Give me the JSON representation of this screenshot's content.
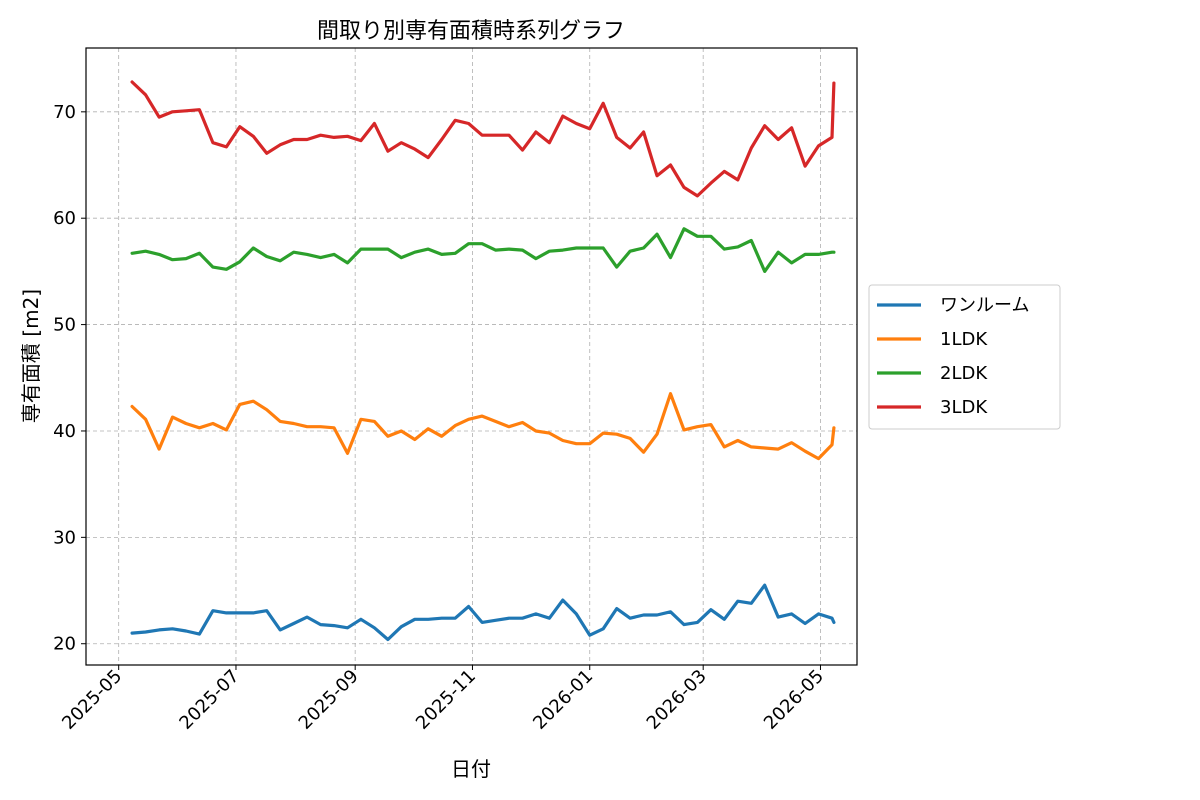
{
  "chart_data": {
    "type": "line",
    "title": "間取り別専有面積時系列グラフ",
    "xlabel": "日付",
    "ylabel": "専有面積 [m2]",
    "xlim": [
      "2025-04-14",
      "2026-05-20"
    ],
    "ylim": [
      18,
      76
    ],
    "grid": true,
    "legend_position": "outside-right",
    "x_ticks": [
      "2025-05-01",
      "2025-07-01",
      "2025-09-01",
      "2025-11-01",
      "2026-01-01",
      "2026-03-01",
      "2026-05-01"
    ],
    "x_tick_labels": [
      "2025-05",
      "2025-07",
      "2025-09",
      "2025-11",
      "2026-01",
      "2026-03",
      "2026-05"
    ],
    "y_ticks": [
      20,
      30,
      40,
      50,
      60,
      70
    ],
    "x": [
      "2025-05-08",
      "2025-05-15",
      "2025-05-22",
      "2025-05-29",
      "2025-06-05",
      "2025-06-12",
      "2025-06-19",
      "2025-06-26",
      "2025-07-03",
      "2025-07-10",
      "2025-07-17",
      "2025-07-24",
      "2025-07-31",
      "2025-08-07",
      "2025-08-14",
      "2025-08-21",
      "2025-08-28",
      "2025-09-04",
      "2025-09-11",
      "2025-09-18",
      "2025-09-25",
      "2025-10-02",
      "2025-10-09",
      "2025-10-16",
      "2025-10-23",
      "2025-10-30",
      "2025-11-06",
      "2025-11-13",
      "2025-11-20",
      "2025-11-27",
      "2025-12-04",
      "2025-12-11",
      "2025-12-18",
      "2025-12-25",
      "2026-01-01",
      "2026-01-08",
      "2026-01-15",
      "2026-01-22",
      "2026-01-29",
      "2026-02-05",
      "2026-02-12",
      "2026-02-19",
      "2026-02-26",
      "2026-03-05",
      "2026-03-12",
      "2026-03-19",
      "2026-03-26",
      "2026-04-02",
      "2026-04-09",
      "2026-04-16",
      "2026-04-23",
      "2026-04-30",
      "2026-05-07",
      "2026-05-08"
    ],
    "series": [
      {
        "name": "ワンルーム",
        "color": "#1f77b4",
        "values": [
          21.0,
          21.1,
          21.3,
          21.4,
          21.2,
          20.9,
          23.1,
          22.9,
          22.9,
          22.9,
          23.1,
          21.3,
          21.9,
          22.5,
          21.8,
          21.7,
          21.5,
          22.3,
          21.5,
          20.4,
          21.6,
          22.3,
          22.3,
          22.4,
          22.4,
          23.5,
          22.0,
          22.2,
          22.4,
          22.4,
          22.8,
          22.4,
          24.1,
          22.8,
          20.8,
          21.4,
          23.3,
          22.4,
          22.7,
          22.7,
          23.0,
          21.8,
          22.0,
          23.2,
          22.3,
          24.0,
          23.8,
          25.5,
          22.5,
          22.8,
          21.9,
          22.8,
          22.4,
          22.0
        ]
      },
      {
        "name": "1LDK",
        "color": "#ff7f0e",
        "values": [
          42.3,
          41.1,
          38.3,
          41.3,
          40.7,
          40.3,
          40.7,
          40.1,
          42.5,
          42.8,
          42.0,
          40.9,
          40.7,
          40.4,
          40.4,
          40.3,
          37.9,
          41.1,
          40.9,
          39.5,
          40.0,
          39.2,
          40.2,
          39.5,
          40.5,
          41.1,
          41.4,
          40.9,
          40.4,
          40.8,
          40.0,
          39.8,
          39.1,
          38.8,
          38.8,
          39.8,
          39.7,
          39.3,
          38.0,
          39.7,
          43.5,
          40.1,
          40.4,
          40.6,
          38.5,
          39.1,
          38.5,
          38.4,
          38.3,
          38.9,
          38.1,
          37.4,
          38.7,
          40.3
        ]
      },
      {
        "name": "2LDK",
        "color": "#2ca02c",
        "values": [
          56.7,
          56.9,
          56.6,
          56.1,
          56.2,
          56.7,
          55.4,
          55.2,
          55.9,
          57.2,
          56.4,
          56.0,
          56.8,
          56.6,
          56.3,
          56.6,
          55.8,
          57.1,
          57.1,
          57.1,
          56.3,
          56.8,
          57.1,
          56.6,
          56.7,
          57.6,
          57.6,
          57.0,
          57.1,
          57.0,
          56.2,
          56.9,
          57.0,
          57.2,
          57.2,
          57.2,
          55.4,
          56.9,
          57.2,
          58.5,
          56.3,
          59.0,
          58.3,
          58.3,
          57.1,
          57.3,
          57.9,
          55.0,
          56.8,
          55.8,
          56.6,
          56.6,
          56.8,
          56.8
        ]
      },
      {
        "name": "3LDK",
        "color": "#d62728",
        "values": [
          72.8,
          71.6,
          69.5,
          70.0,
          70.1,
          70.2,
          67.1,
          66.7,
          68.6,
          67.7,
          66.1,
          66.9,
          67.4,
          67.4,
          67.8,
          67.6,
          67.7,
          67.3,
          68.9,
          66.3,
          67.1,
          66.5,
          65.7,
          67.4,
          69.2,
          68.9,
          67.8,
          67.8,
          67.8,
          66.4,
          68.1,
          67.1,
          69.6,
          68.9,
          68.4,
          70.8,
          67.6,
          66.6,
          68.1,
          64.0,
          65.0,
          62.9,
          62.1,
          63.3,
          64.4,
          63.6,
          66.6,
          68.7,
          67.4,
          68.5,
          64.9,
          66.8,
          67.6,
          72.7
        ]
      }
    ]
  }
}
